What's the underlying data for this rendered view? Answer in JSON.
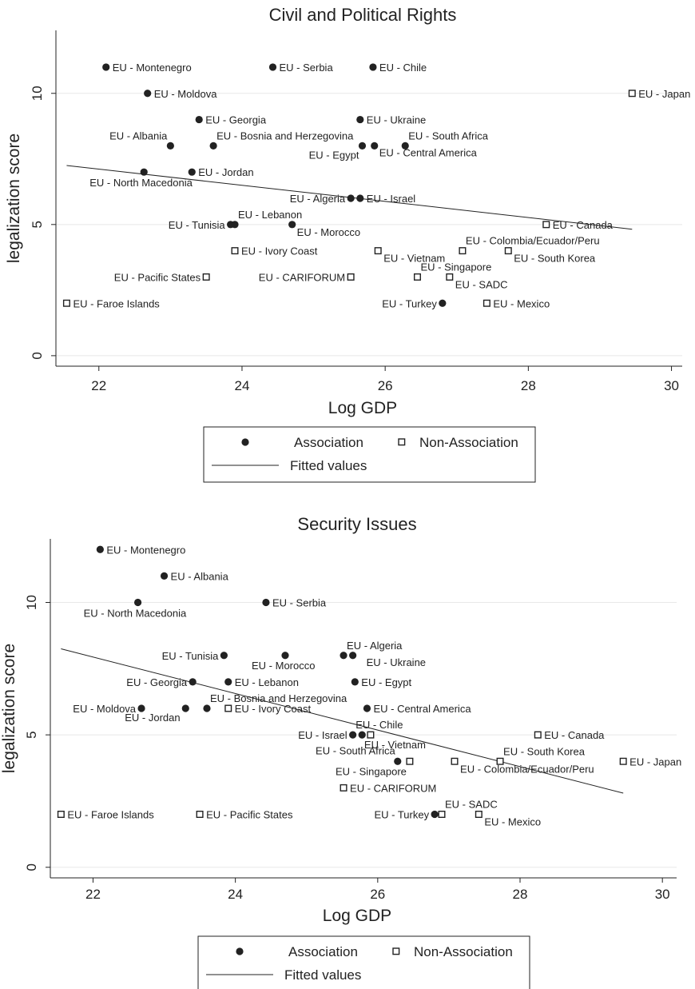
{
  "legend": {
    "association": "Association",
    "non_association": "Non-Association",
    "fitted": "Fitted values"
  },
  "chart_data": [
    {
      "type": "scatter",
      "title": "Civil and Political Rights",
      "xlabel": "Log GDP",
      "ylabel": "legalization score",
      "xlim": [
        21.4,
        30.15
      ],
      "ylim": [
        -0.4,
        12.4
      ],
      "xticks": [
        "22",
        "24",
        "26",
        "28",
        "30"
      ],
      "yticks": [
        "0",
        "5",
        "10"
      ],
      "grid": true,
      "legend_position": "bottom",
      "fitted_line": {
        "x": [
          21.55,
          29.45
        ],
        "y": [
          7.25,
          4.82
        ]
      },
      "series": [
        {
          "name": "Association",
          "marker": "filled-circle",
          "points": [
            {
              "label": "EU - Montenegro",
              "x": 22.1,
              "y": 11
            },
            {
              "label": "EU - Serbia",
              "x": 24.43,
              "y": 11
            },
            {
              "label": "EU - Chile",
              "x": 25.83,
              "y": 11
            },
            {
              "label": "EU - Moldova",
              "x": 22.68,
              "y": 10
            },
            {
              "label": "EU - Georgia",
              "x": 23.4,
              "y": 9
            },
            {
              "label": "EU - Ukraine",
              "x": 25.65,
              "y": 9
            },
            {
              "label": "EU - Albania",
              "x": 23.0,
              "y": 8
            },
            {
              "label": "EU - Bosnia and Herzegovina",
              "x": 23.6,
              "y": 8
            },
            {
              "label": "EU - Egypt",
              "x": 25.68,
              "y": 8
            },
            {
              "label": "EU - Central America",
              "x": 25.85,
              "y": 8
            },
            {
              "label": "EU - South Africa",
              "x": 26.28,
              "y": 8
            },
            {
              "label": "EU - North Macedonia",
              "x": 22.63,
              "y": 7
            },
            {
              "label": "EU - Jordan",
              "x": 23.3,
              "y": 7
            },
            {
              "label": "EU - Algeria",
              "x": 25.52,
              "y": 6
            },
            {
              "label": "EU - Israel",
              "x": 25.65,
              "y": 6
            },
            {
              "label": "EU - Tunisia",
              "x": 23.84,
              "y": 5
            },
            {
              "label": "EU - Lebanon",
              "x": 23.9,
              "y": 5
            },
            {
              "label": "EU - Morocco",
              "x": 24.7,
              "y": 5
            },
            {
              "label": "EU - Turkey",
              "x": 26.8,
              "y": 2
            }
          ]
        },
        {
          "name": "Non-Association",
          "marker": "hollow-square",
          "points": [
            {
              "label": "EU - Japan",
              "x": 29.45,
              "y": 10
            },
            {
              "label": "EU - Canada",
              "x": 28.25,
              "y": 5
            },
            {
              "label": "EU - Ivory Coast",
              "x": 23.9,
              "y": 4
            },
            {
              "label": "EU - Vietnam",
              "x": 25.9,
              "y": 4
            },
            {
              "label": "EU - Colombia/Ecuador/Peru",
              "x": 27.08,
              "y": 4
            },
            {
              "label": "EU - South Korea",
              "x": 27.72,
              "y": 4
            },
            {
              "label": "EU - Pacific States",
              "x": 23.5,
              "y": 3
            },
            {
              "label": "EU - CARIFORUM",
              "x": 25.52,
              "y": 3
            },
            {
              "label": "EU - Singapore",
              "x": 26.45,
              "y": 3
            },
            {
              "label": "EU - SADC",
              "x": 26.9,
              "y": 3
            },
            {
              "label": "EU - Faroe Islands",
              "x": 21.55,
              "y": 2
            },
            {
              "label": "EU - Mexico",
              "x": 27.42,
              "y": 2
            }
          ]
        }
      ]
    },
    {
      "type": "scatter",
      "title": "Security Issues",
      "xlabel": "Log GDP",
      "ylabel": "legalization score",
      "xlim": [
        21.4,
        30.2
      ],
      "ylim": [
        -0.4,
        12.4
      ],
      "xticks": [
        "22",
        "24",
        "26",
        "28",
        "30"
      ],
      "yticks": [
        "0",
        "5",
        "10"
      ],
      "grid": true,
      "legend_position": "bottom",
      "fitted_line": {
        "x": [
          21.55,
          29.45
        ],
        "y": [
          8.25,
          2.8
        ]
      },
      "series": [
        {
          "name": "Association",
          "marker": "filled-circle",
          "points": [
            {
              "label": "EU - Montenegro",
              "x": 22.1,
              "y": 12
            },
            {
              "label": "EU - Albania",
              "x": 23.0,
              "y": 11
            },
            {
              "label": "EU - North Macedonia",
              "x": 22.63,
              "y": 10
            },
            {
              "label": "EU - Serbia",
              "x": 24.43,
              "y": 10
            },
            {
              "label": "EU - Tunisia",
              "x": 23.84,
              "y": 8
            },
            {
              "label": "EU - Morocco",
              "x": 24.7,
              "y": 8
            },
            {
              "label": "EU - Algeria",
              "x": 25.52,
              "y": 8
            },
            {
              "label": "EU - Ukraine",
              "x": 25.65,
              "y": 8
            },
            {
              "label": "EU - Georgia",
              "x": 23.4,
              "y": 7
            },
            {
              "label": "EU - Lebanon",
              "x": 23.9,
              "y": 7
            },
            {
              "label": "EU - Egypt",
              "x": 25.68,
              "y": 7
            },
            {
              "label": "EU - Moldova",
              "x": 22.68,
              "y": 6
            },
            {
              "label": "EU - Jordan",
              "x": 23.3,
              "y": 6
            },
            {
              "label": "EU - Bosnia and Herzegovina",
              "x": 23.6,
              "y": 6
            },
            {
              "label": "EU - Central America",
              "x": 25.85,
              "y": 6
            },
            {
              "label": "EU - Israel",
              "x": 25.65,
              "y": 5
            },
            {
              "label": "EU - Chile",
              "x": 25.78,
              "y": 5
            },
            {
              "label": "EU - South Africa",
              "x": 26.28,
              "y": 4
            },
            {
              "label": "EU - Turkey",
              "x": 26.8,
              "y": 2
            }
          ]
        },
        {
          "name": "Non-Association",
          "marker": "hollow-square",
          "points": [
            {
              "label": "EU - Ivory Coast",
              "x": 23.9,
              "y": 6
            },
            {
              "label": "EU - Vietnam",
              "x": 25.9,
              "y": 5
            },
            {
              "label": "EU - Canada",
              "x": 28.25,
              "y": 5
            },
            {
              "label": "EU - Singapore",
              "x": 26.45,
              "y": 4
            },
            {
              "label": "EU - Colombia/Ecuador/Peru",
              "x": 27.08,
              "y": 4
            },
            {
              "label": "EU - South Korea",
              "x": 27.72,
              "y": 4
            },
            {
              "label": "EU - Japan",
              "x": 29.45,
              "y": 4
            },
            {
              "label": "EU - CARIFORUM",
              "x": 25.52,
              "y": 3
            },
            {
              "label": "EU - Faroe Islands",
              "x": 21.55,
              "y": 2
            },
            {
              "label": "EU - Pacific States",
              "x": 23.5,
              "y": 2
            },
            {
              "label": "EU - SADC",
              "x": 26.9,
              "y": 2
            },
            {
              "label": "EU - Mexico",
              "x": 27.42,
              "y": 2
            }
          ]
        }
      ]
    }
  ]
}
